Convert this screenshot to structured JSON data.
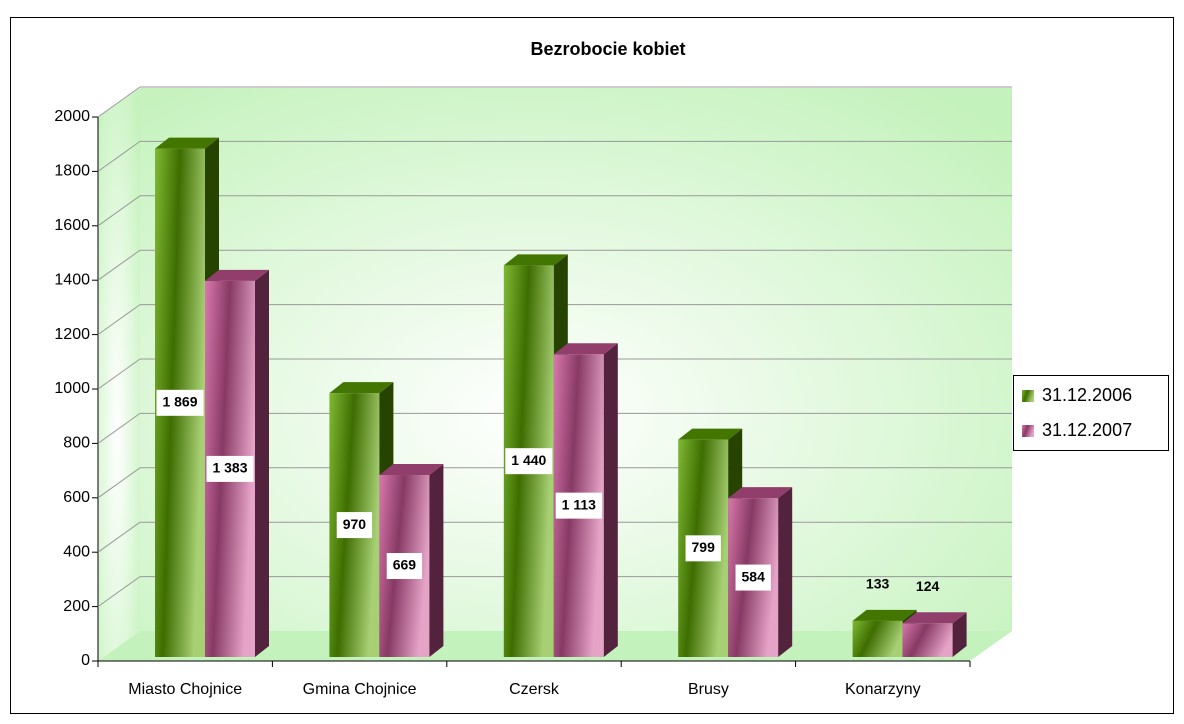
{
  "chart_data": {
    "type": "bar3d",
    "title": "Bezrobocie kobiet",
    "categories": [
      "Miasto Chojnice",
      "Gmina Chojnice",
      "Czersk",
      "Brusy",
      "Konarzyny"
    ],
    "series": [
      {
        "name": "31.12.2006",
        "color": "#5fa800",
        "values": [
          1869,
          970,
          1440,
          799,
          133
        ],
        "value_labels": [
          "1 869",
          "970",
          "1 440",
          "799",
          "133"
        ]
      },
      {
        "name": "31.12.2007",
        "color": "#d0589a",
        "values": [
          1383,
          669,
          1113,
          584,
          124
        ],
        "value_labels": [
          "1 383",
          "669",
          "1 113",
          "584",
          "124"
        ]
      }
    ],
    "ylim": [
      0,
      2000
    ],
    "yticks": [
      0,
      200,
      400,
      600,
      800,
      1000,
      1200,
      1400,
      1600,
      1800,
      2000
    ],
    "grid": true,
    "legend": "right"
  }
}
